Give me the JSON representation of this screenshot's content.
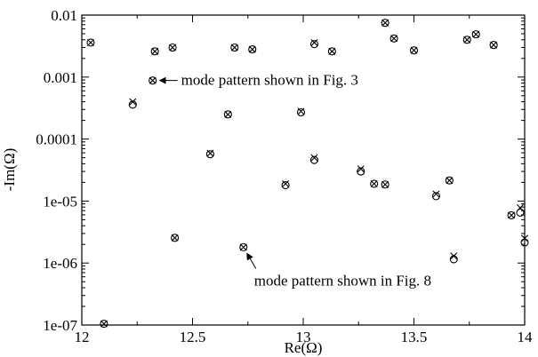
{
  "chart_data": {
    "type": "scatter",
    "title": "",
    "xlabel": "Re(Ω)",
    "ylabel": "-Im(Ω)",
    "xlim": [
      12,
      14
    ],
    "ylim": [
      1e-07,
      0.01
    ],
    "yscale": "log",
    "grid": false,
    "legend": "none",
    "x_ticks": [
      12,
      12.5,
      13,
      13.5,
      14
    ],
    "x_tick_labels": [
      "12",
      "12.5",
      "13",
      "13.5",
      "14"
    ],
    "y_ticks": [
      1e-07,
      1e-06,
      1e-05,
      0.0001,
      0.001,
      0.01
    ],
    "y_tick_labels": [
      "1e-07",
      "1e-06",
      "1e-05",
      "0.0001",
      "0.001",
      "0.01"
    ],
    "series": [
      {
        "marker": "circle",
        "x": [
          12.04,
          12.1,
          12.23,
          12.32,
          12.33,
          12.41,
          12.42,
          12.58,
          12.66,
          12.69,
          12.73,
          12.77,
          12.92,
          12.99,
          13.05,
          13.05,
          13.13,
          13.26,
          13.32,
          13.37,
          13.37,
          13.41,
          13.5,
          13.6,
          13.66,
          13.68,
          13.74,
          13.78,
          13.86,
          13.94,
          13.98,
          14.0
        ],
        "y": [
          0.0036,
          1.05e-07,
          0.00036,
          0.00088,
          0.0026,
          0.003,
          2.55e-06,
          5.7e-05,
          0.00025,
          0.003,
          1.8e-06,
          0.0028,
          1.8e-05,
          0.00027,
          4.6e-05,
          0.0034,
          0.0026,
          3e-05,
          1.9e-05,
          1.85e-05,
          0.0075,
          0.0042,
          0.0027,
          1.2e-05,
          2.15e-05,
          1.15e-06,
          0.004,
          0.0049,
          0.0033,
          5.9e-06,
          6.5e-06,
          2.15e-06
        ]
      },
      {
        "marker": "x",
        "x": [
          12.04,
          12.1,
          12.23,
          12.32,
          12.33,
          12.41,
          12.42,
          12.58,
          12.66,
          12.69,
          12.73,
          12.77,
          12.92,
          12.99,
          13.05,
          13.05,
          13.13,
          13.26,
          13.32,
          13.37,
          13.37,
          13.41,
          13.5,
          13.6,
          13.66,
          13.68,
          13.74,
          13.78,
          13.86,
          13.94,
          13.98,
          14.0
        ],
        "y": [
          0.0036,
          1.05e-07,
          0.0004,
          0.00088,
          0.0026,
          0.003,
          2.55e-06,
          5.9e-05,
          0.00025,
          0.003,
          1.8e-06,
          0.0028,
          1.9e-05,
          0.00028,
          5e-05,
          0.0036,
          0.0026,
          3.3e-05,
          1.9e-05,
          1.85e-05,
          0.0075,
          0.0042,
          0.0027,
          1.3e-05,
          2.15e-05,
          1.3e-06,
          0.004,
          0.0049,
          0.0033,
          5.9e-06,
          7.8e-06,
          2.5e-06
        ]
      }
    ],
    "annotations": [
      {
        "text": "mode pattern shown in Fig. 3",
        "target_x": 12.32,
        "target_y": 0.00088
      },
      {
        "text": "mode pattern shown in Fig. 8",
        "target_x": 12.73,
        "target_y": 1.8e-06
      }
    ]
  }
}
